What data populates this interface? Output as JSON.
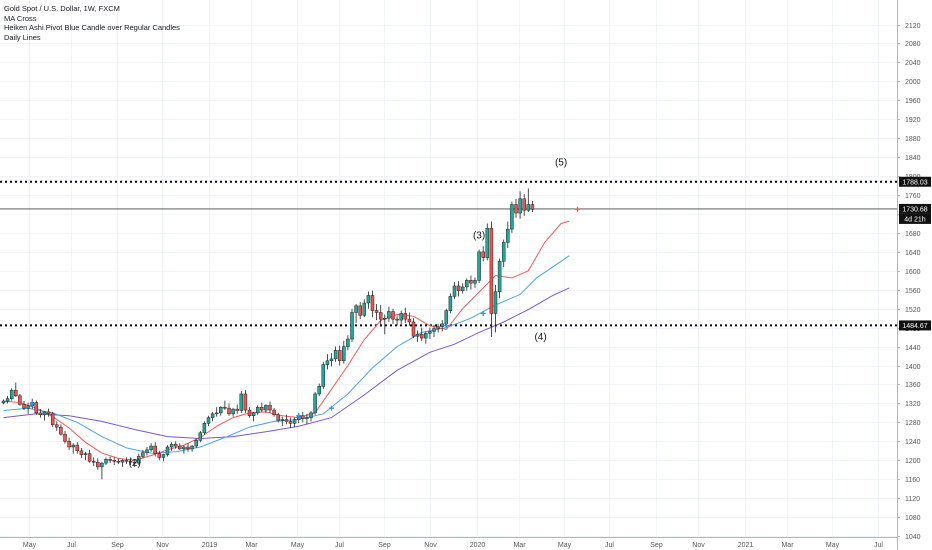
{
  "header": {
    "symbol_line": "Gold Spot / U.S. Dollar, 1W, FXCM",
    "indicators": [
      "MA Cross",
      "Heiken Ashi Pivot Blue Candle over Regular Candles",
      "Daily Lines"
    ]
  },
  "colors": {
    "bull": "#26a69a",
    "bear": "#ef5350",
    "body_fill_bull": "#ffffff",
    "wick": "#222222",
    "ma_fast": "#f05a5a",
    "ma_mid": "#4fa3e0",
    "ma_slow": "#7e57c2",
    "marker": "#2196f3",
    "grid": "#f0f3fa",
    "axis_text": "#555555"
  },
  "chart_data": {
    "type": "candlestick",
    "ylim": [
      1020,
      2160
    ],
    "y_ticks": [
      2120,
      2080,
      2040,
      2000,
      1960,
      1920,
      1880,
      1840,
      1800,
      1760,
      1720,
      1680,
      1640,
      1600,
      1560,
      1520,
      1480,
      1440,
      1400,
      1360,
      1320,
      1280,
      1240,
      1200,
      1160,
      1120,
      1080,
      1040
    ],
    "x_ticks": [
      "May",
      "Jul",
      "Sep",
      "Nov",
      "2019",
      "Mar",
      "May",
      "Jul",
      "Sep",
      "Nov",
      "2020",
      "Mar",
      "May",
      "Jul",
      "Sep",
      "Nov",
      "2021",
      "Mar",
      "May",
      "Jul"
    ],
    "horizontal_levels": [
      {
        "value": 1788.03,
        "label": "1788.03",
        "style": "dotted"
      },
      {
        "value": 1484.67,
        "label": "1484.67",
        "style": "dotted"
      }
    ],
    "last_price": {
      "value": 1730.68,
      "label": "1730.68",
      "countdown": "4d 21h"
    },
    "annotations": [
      {
        "text": "(2)",
        "x_index": 32,
        "y": 1188
      },
      {
        "text": "(3)",
        "x_index": 116,
        "y": 1668
      },
      {
        "text": "(4)",
        "x_index": 131,
        "y": 1454
      },
      {
        "text": "(5)",
        "x_index": 136,
        "y": 1822
      }
    ],
    "candles": [
      [
        1321,
        1328,
        1318,
        1325
      ],
      [
        1325,
        1336,
        1320,
        1330
      ],
      [
        1330,
        1352,
        1326,
        1348
      ],
      [
        1348,
        1364,
        1334,
        1336
      ],
      [
        1336,
        1340,
        1315,
        1318
      ],
      [
        1318,
        1325,
        1306,
        1310
      ],
      [
        1310,
        1322,
        1298,
        1315
      ],
      [
        1315,
        1330,
        1308,
        1322
      ],
      [
        1322,
        1326,
        1296,
        1300
      ],
      [
        1300,
        1308,
        1290,
        1296
      ],
      [
        1296,
        1304,
        1284,
        1302
      ],
      [
        1302,
        1309,
        1292,
        1298
      ],
      [
        1298,
        1302,
        1270,
        1275
      ],
      [
        1275,
        1282,
        1262,
        1270
      ],
      [
        1270,
        1276,
        1252,
        1255
      ],
      [
        1255,
        1262,
        1235,
        1240
      ],
      [
        1240,
        1248,
        1222,
        1228
      ],
      [
        1228,
        1236,
        1214,
        1232
      ],
      [
        1232,
        1238,
        1214,
        1220
      ],
      [
        1220,
        1226,
        1205,
        1212
      ],
      [
        1212,
        1218,
        1200,
        1214
      ],
      [
        1214,
        1222,
        1195,
        1198
      ],
      [
        1198,
        1206,
        1188,
        1196
      ],
      [
        1196,
        1204,
        1180,
        1186
      ],
      [
        1186,
        1196,
        1160,
        1194
      ],
      [
        1194,
        1206,
        1190,
        1202
      ],
      [
        1202,
        1208,
        1194,
        1200
      ],
      [
        1200,
        1206,
        1190,
        1198
      ],
      [
        1198,
        1204,
        1192,
        1196
      ],
      [
        1196,
        1202,
        1186,
        1200
      ],
      [
        1200,
        1206,
        1192,
        1198
      ],
      [
        1198,
        1206,
        1190,
        1196
      ],
      [
        1196,
        1202,
        1186,
        1194
      ],
      [
        1194,
        1214,
        1190,
        1208
      ],
      [
        1208,
        1222,
        1204,
        1216
      ],
      [
        1216,
        1228,
        1210,
        1222
      ],
      [
        1222,
        1236,
        1218,
        1230
      ],
      [
        1230,
        1238,
        1208,
        1214
      ],
      [
        1214,
        1220,
        1200,
        1206
      ],
      [
        1206,
        1214,
        1198,
        1212
      ],
      [
        1212,
        1232,
        1208,
        1228
      ],
      [
        1228,
        1238,
        1220,
        1234
      ],
      [
        1234,
        1240,
        1224,
        1230
      ],
      [
        1230,
        1236,
        1222,
        1224
      ],
      [
        1224,
        1232,
        1214,
        1228
      ],
      [
        1228,
        1236,
        1218,
        1224
      ],
      [
        1224,
        1232,
        1218,
        1230
      ],
      [
        1230,
        1246,
        1226,
        1242
      ],
      [
        1242,
        1262,
        1238,
        1258
      ],
      [
        1258,
        1282,
        1254,
        1278
      ],
      [
        1278,
        1294,
        1272,
        1290
      ],
      [
        1290,
        1302,
        1282,
        1298
      ],
      [
        1298,
        1312,
        1292,
        1300
      ],
      [
        1300,
        1314,
        1294,
        1312
      ],
      [
        1312,
        1326,
        1306,
        1310
      ],
      [
        1310,
        1320,
        1294,
        1298
      ],
      [
        1298,
        1310,
        1292,
        1308
      ],
      [
        1308,
        1318,
        1298,
        1305
      ],
      [
        1305,
        1346,
        1300,
        1340
      ],
      [
        1340,
        1348,
        1300,
        1306
      ],
      [
        1306,
        1312,
        1290,
        1294
      ],
      [
        1294,
        1302,
        1282,
        1300
      ],
      [
        1300,
        1316,
        1296,
        1312
      ],
      [
        1312,
        1322,
        1302,
        1306
      ],
      [
        1306,
        1318,
        1300,
        1316
      ],
      [
        1316,
        1324,
        1300,
        1306
      ],
      [
        1306,
        1310,
        1292,
        1296
      ],
      [
        1296,
        1300,
        1280,
        1284
      ],
      [
        1284,
        1292,
        1272,
        1286
      ],
      [
        1286,
        1296,
        1276,
        1282
      ],
      [
        1282,
        1290,
        1268,
        1278
      ],
      [
        1278,
        1290,
        1270,
        1286
      ],
      [
        1286,
        1300,
        1278,
        1294
      ],
      [
        1294,
        1302,
        1280,
        1288
      ],
      [
        1288,
        1298,
        1276,
        1290
      ],
      [
        1290,
        1304,
        1282,
        1300
      ],
      [
        1300,
        1344,
        1296,
        1340
      ],
      [
        1340,
        1362,
        1336,
        1356
      ],
      [
        1356,
        1408,
        1350,
        1402
      ],
      [
        1402,
        1424,
        1392,
        1410
      ],
      [
        1410,
        1426,
        1398,
        1414
      ],
      [
        1414,
        1440,
        1408,
        1432
      ],
      [
        1432,
        1442,
        1400,
        1410
      ],
      [
        1410,
        1452,
        1404,
        1440
      ],
      [
        1440,
        1464,
        1432,
        1456
      ],
      [
        1456,
        1520,
        1450,
        1512
      ],
      [
        1512,
        1530,
        1490,
        1526
      ],
      [
        1526,
        1534,
        1498,
        1506
      ],
      [
        1506,
        1540,
        1502,
        1532
      ],
      [
        1532,
        1556,
        1520,
        1548
      ],
      [
        1548,
        1558,
        1502,
        1516
      ],
      [
        1516,
        1530,
        1496,
        1512
      ],
      [
        1512,
        1528,
        1482,
        1498
      ],
      [
        1498,
        1508,
        1466,
        1500
      ],
      [
        1500,
        1524,
        1492,
        1514
      ],
      [
        1514,
        1520,
        1488,
        1498
      ],
      [
        1498,
        1506,
        1484,
        1496
      ],
      [
        1496,
        1516,
        1488,
        1510
      ],
      [
        1510,
        1522,
        1490,
        1498
      ],
      [
        1498,
        1512,
        1484,
        1492
      ],
      [
        1492,
        1500,
        1458,
        1462
      ],
      [
        1462,
        1474,
        1450,
        1466
      ],
      [
        1466,
        1480,
        1452,
        1458
      ],
      [
        1458,
        1472,
        1446,
        1468
      ],
      [
        1468,
        1480,
        1456,
        1472
      ],
      [
        1472,
        1486,
        1460,
        1478
      ],
      [
        1478,
        1488,
        1470,
        1482
      ],
      [
        1482,
        1496,
        1472,
        1488
      ],
      [
        1488,
        1520,
        1482,
        1516
      ],
      [
        1516,
        1552,
        1510,
        1546
      ],
      [
        1546,
        1576,
        1540,
        1568
      ],
      [
        1568,
        1578,
        1546,
        1558
      ],
      [
        1558,
        1574,
        1552,
        1566
      ],
      [
        1566,
        1584,
        1558,
        1580
      ],
      [
        1580,
        1590,
        1560,
        1574
      ],
      [
        1574,
        1586,
        1564,
        1580
      ],
      [
        1580,
        1645,
        1574,
        1640
      ],
      [
        1640,
        1652,
        1620,
        1628
      ],
      [
        1628,
        1700,
        1622,
        1690
      ],
      [
        1690,
        1704,
        1460,
        1510
      ],
      [
        1510,
        1570,
        1470,
        1556
      ],
      [
        1556,
        1626,
        1542,
        1620
      ],
      [
        1620,
        1666,
        1608,
        1660
      ],
      [
        1660,
        1704,
        1648,
        1688
      ],
      [
        1688,
        1746,
        1680,
        1740
      ],
      [
        1740,
        1752,
        1712,
        1722
      ],
      [
        1722,
        1768,
        1710,
        1752
      ],
      [
        1752,
        1762,
        1716,
        1728
      ],
      [
        1728,
        1774,
        1724,
        1740
      ],
      [
        1740,
        1748,
        1724,
        1730
      ]
    ],
    "ma_fast": [
      [
        0,
        1325
      ],
      [
        4,
        1322
      ],
      [
        8,
        1310
      ],
      [
        12,
        1292
      ],
      [
        16,
        1268
      ],
      [
        20,
        1238
      ],
      [
        24,
        1215
      ],
      [
        28,
        1204
      ],
      [
        32,
        1200
      ],
      [
        36,
        1210
      ],
      [
        40,
        1222
      ],
      [
        44,
        1232
      ],
      [
        48,
        1248
      ],
      [
        52,
        1272
      ],
      [
        56,
        1290
      ],
      [
        60,
        1300
      ],
      [
        64,
        1302
      ],
      [
        68,
        1294
      ],
      [
        72,
        1290
      ],
      [
        76,
        1300
      ],
      [
        80,
        1350
      ],
      [
        84,
        1400
      ],
      [
        88,
        1455
      ],
      [
        92,
        1495
      ],
      [
        96,
        1508
      ],
      [
        100,
        1504
      ],
      [
        104,
        1484
      ],
      [
        108,
        1476
      ],
      [
        112,
        1520
      ],
      [
        116,
        1555
      ],
      [
        120,
        1590
      ],
      [
        124,
        1585
      ],
      [
        128,
        1600
      ],
      [
        132,
        1660
      ],
      [
        136,
        1700
      ],
      [
        138,
        1705
      ]
    ],
    "ma_mid": [
      [
        0,
        1305
      ],
      [
        6,
        1310
      ],
      [
        12,
        1300
      ],
      [
        18,
        1280
      ],
      [
        24,
        1250
      ],
      [
        30,
        1226
      ],
      [
        36,
        1215
      ],
      [
        42,
        1218
      ],
      [
        48,
        1228
      ],
      [
        54,
        1248
      ],
      [
        60,
        1270
      ],
      [
        66,
        1282
      ],
      [
        72,
        1286
      ],
      [
        78,
        1298
      ],
      [
        84,
        1340
      ],
      [
        90,
        1395
      ],
      [
        96,
        1440
      ],
      [
        102,
        1470
      ],
      [
        108,
        1480
      ],
      [
        114,
        1500
      ],
      [
        120,
        1528
      ],
      [
        126,
        1550
      ],
      [
        130,
        1585
      ],
      [
        136,
        1620
      ],
      [
        138,
        1632
      ]
    ],
    "ma_slow": [
      [
        0,
        1290
      ],
      [
        8,
        1298
      ],
      [
        16,
        1294
      ],
      [
        24,
        1282
      ],
      [
        32,
        1265
      ],
      [
        40,
        1250
      ],
      [
        48,
        1246
      ],
      [
        56,
        1250
      ],
      [
        64,
        1260
      ],
      [
        72,
        1272
      ],
      [
        80,
        1290
      ],
      [
        88,
        1338
      ],
      [
        96,
        1390
      ],
      [
        104,
        1428
      ],
      [
        110,
        1445
      ],
      [
        116,
        1470
      ],
      [
        122,
        1492
      ],
      [
        128,
        1518
      ],
      [
        134,
        1548
      ],
      [
        138,
        1564
      ]
    ],
    "markers": [
      [
        7,
        1319
      ],
      [
        72,
        1294
      ],
      [
        80,
        1310
      ],
      [
        108,
        1484
      ],
      [
        117,
        1510
      ],
      [
        140,
        1730
      ]
    ]
  }
}
